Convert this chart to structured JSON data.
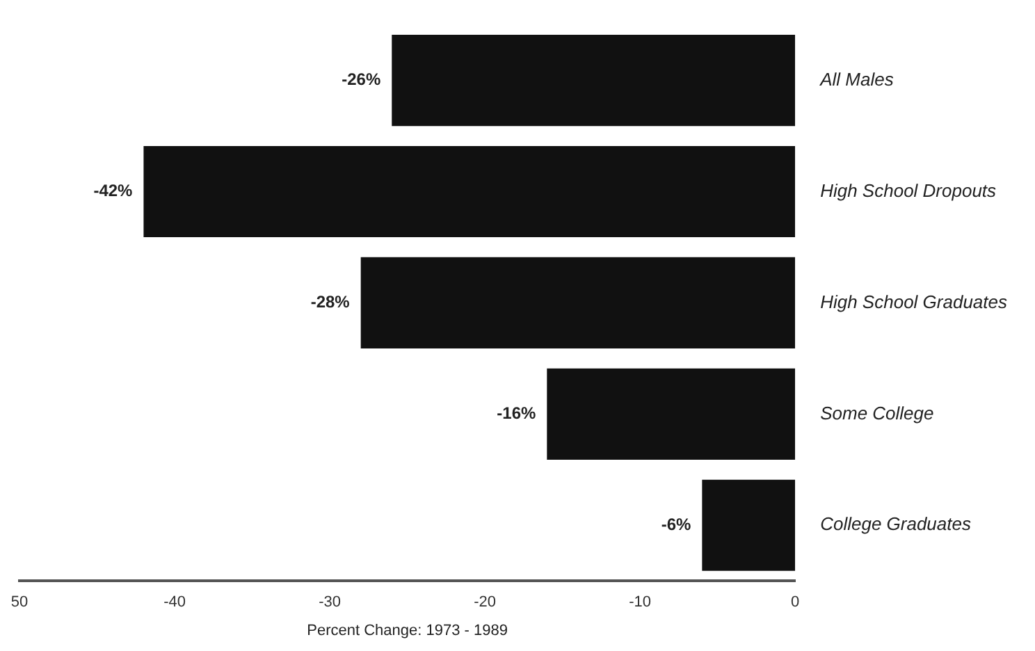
{
  "chart_data": {
    "type": "bar",
    "orientation": "horizontal",
    "xlabel": "Percent Change: 1973 - 1989",
    "categories": [
      "All Males",
      "High School Dropouts",
      "High School Graduates",
      "Some College",
      "College Graduates"
    ],
    "values": [
      -26,
      -42,
      -28,
      -16,
      -6
    ],
    "value_labels": [
      "-26%",
      "-42%",
      "-28%",
      "-16%",
      "-6%"
    ],
    "color": "#111111",
    "xlim": [
      -50,
      0
    ],
    "xticks": [
      {
        "value": -50,
        "label": "50"
      },
      -40,
      -30,
      -20,
      -10,
      0
    ],
    "grid": false,
    "legend": false
  }
}
